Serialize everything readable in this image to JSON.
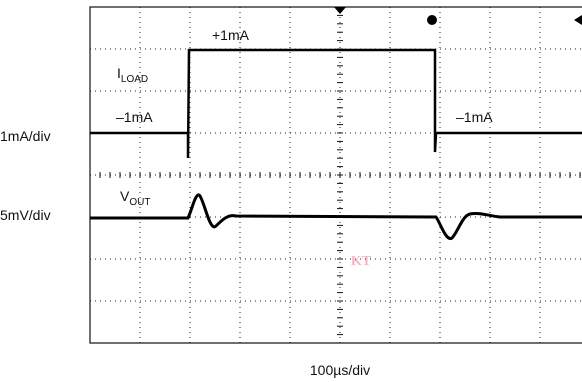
{
  "labels": {
    "iload_step_high": "+1mA",
    "iload_name": "I",
    "iload_subscript": "LOAD",
    "iload_low_left": "–1mA",
    "iload_low_right": "–1mA",
    "iload_scale": "1mA/div",
    "vout_name": "V",
    "vout_subscript": "OUT",
    "vout_scale": "5mV/div",
    "time_scale": "100µs/div",
    "watermark": "KT"
  }
}
